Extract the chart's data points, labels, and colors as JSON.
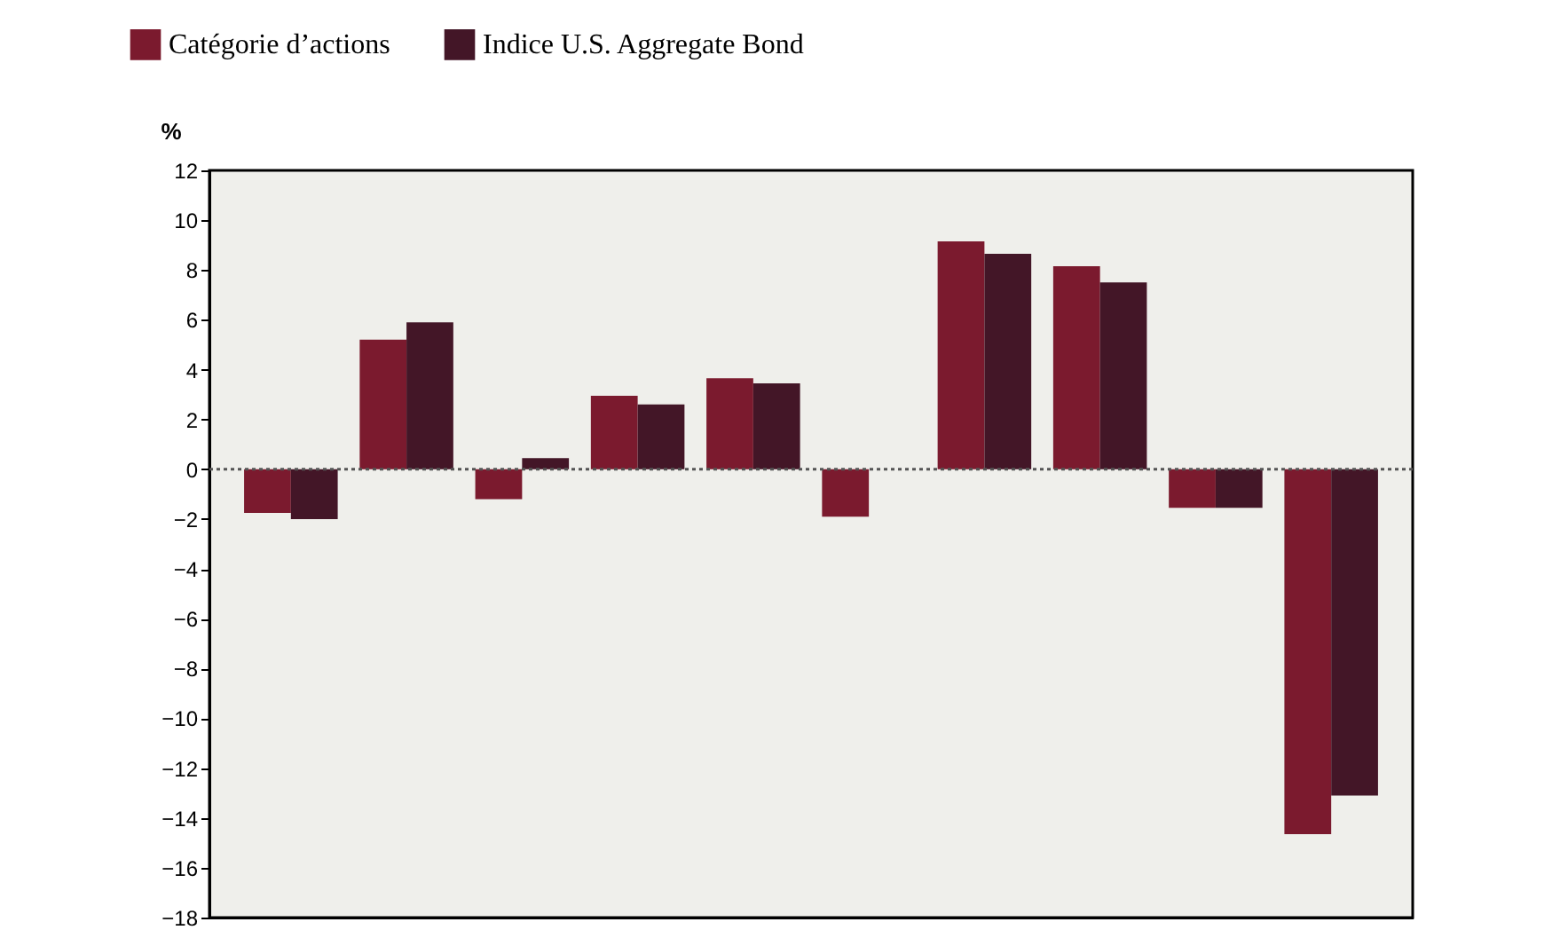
{
  "chart_data": {
    "type": "bar",
    "ylabel": "%",
    "categories": [
      null,
      null,
      null,
      null,
      null,
      null,
      null,
      null,
      null,
      null
    ],
    "series": [
      {
        "name": "Catégorie d’actions",
        "color": "#7b1a2e",
        "values": [
          -1.75,
          5.2,
          -1.2,
          2.95,
          3.65,
          -1.9,
          9.15,
          8.15,
          -1.55,
          -14.65
        ]
      },
      {
        "name": "Indice U.S. Aggregate Bond",
        "color": "#431627",
        "values": [
          -2.0,
          5.9,
          0.45,
          2.6,
          3.45,
          null,
          8.65,
          7.5,
          -1.55,
          -13.1
        ]
      }
    ],
    "ylim": [
      -18,
      12
    ],
    "yticks": [
      -18,
      -16,
      -14,
      -12,
      -10,
      -8,
      -6,
      -4,
      -2,
      0,
      2,
      4,
      6,
      8,
      10,
      12
    ],
    "ref_lines": [
      {
        "axis": "y",
        "value": 0,
        "color": "#555555",
        "line_style": "dotted"
      }
    ],
    "legend": "top left",
    "grid": false
  }
}
